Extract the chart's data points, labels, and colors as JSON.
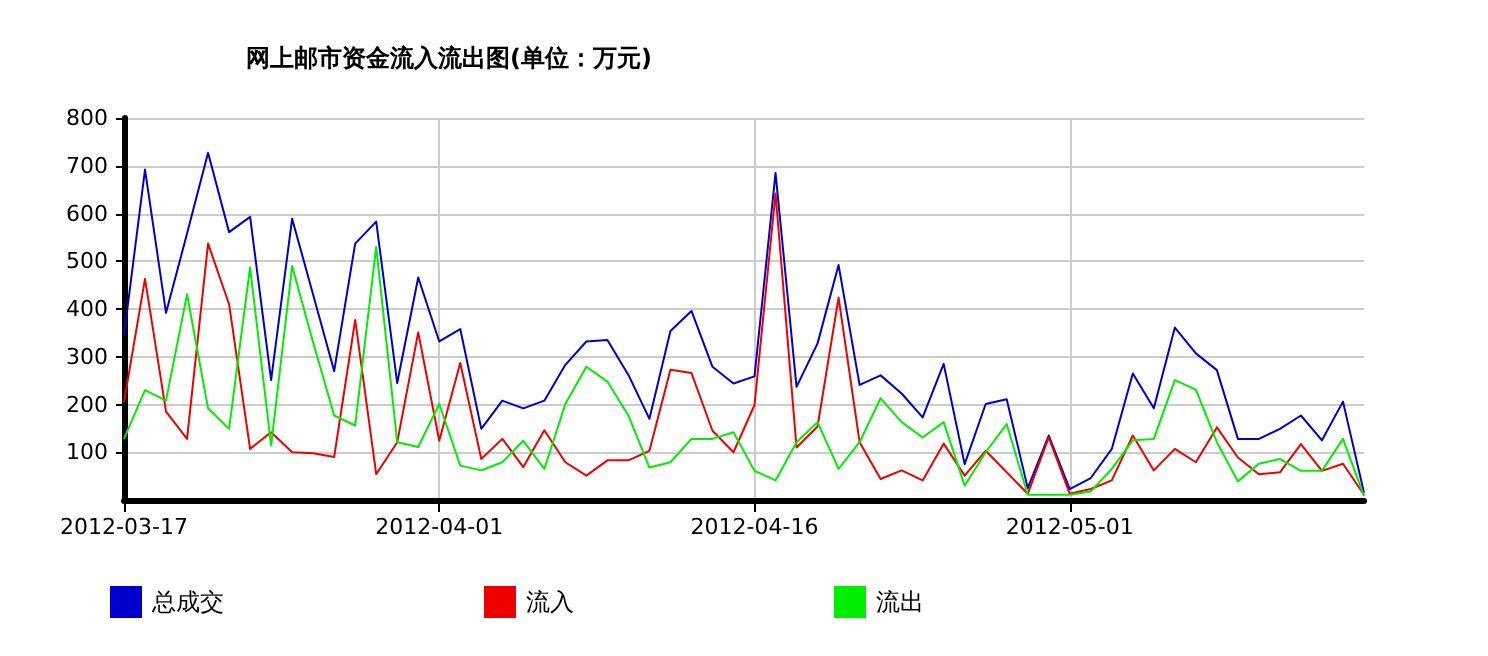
{
  "chart_data": {
    "type": "line",
    "title": "网上邮市资金流入流出图(单位：万元)",
    "x": [
      "2012-03-17",
      "2012-03-18",
      "2012-03-19",
      "2012-03-20",
      "2012-03-21",
      "2012-03-22",
      "2012-03-23",
      "2012-03-24",
      "2012-03-25",
      "2012-03-26",
      "2012-03-27",
      "2012-03-28",
      "2012-03-29",
      "2012-03-30",
      "2012-03-31",
      "2012-04-01",
      "2012-04-02",
      "2012-04-03",
      "2012-04-04",
      "2012-04-05",
      "2012-04-06",
      "2012-04-07",
      "2012-04-08",
      "2012-04-09",
      "2012-04-10",
      "2012-04-11",
      "2012-04-12",
      "2012-04-13",
      "2012-04-14",
      "2012-04-15",
      "2012-04-16",
      "2012-04-17",
      "2012-04-18",
      "2012-04-19",
      "2012-04-20",
      "2012-04-21",
      "2012-04-22",
      "2012-04-23",
      "2012-04-24",
      "2012-04-25",
      "2012-04-26",
      "2012-04-27",
      "2012-04-28",
      "2012-04-29",
      "2012-04-30",
      "2012-05-01",
      "2012-05-02",
      "2012-05-03",
      "2012-05-04",
      "2012-05-05",
      "2012-05-06",
      "2012-05-07",
      "2012-05-08",
      "2012-05-09",
      "2012-05-10",
      "2012-05-11",
      "2012-05-12",
      "2012-05-13",
      "2012-05-14",
      "2012-05-15"
    ],
    "series": [
      {
        "name": "总成交",
        "color": "#0000cc",
        "values": [
          345,
          692,
          392,
          558,
          727,
          561,
          593,
          251,
          589,
          430,
          270,
          537,
          583,
          245,
          466,
          332,
          358,
          149,
          208,
          192,
          208,
          283,
          332,
          335,
          262,
          170,
          354,
          396,
          279,
          244,
          259,
          685,
          237,
          328,
          492,
          241,
          261,
          223,
          173,
          285,
          75,
          201,
          211,
          25,
          135,
          23,
          46,
          107,
          265,
          192,
          361,
          307,
          272,
          128,
          128,
          149,
          177,
          125,
          206,
          15
        ]
      },
      {
        "name": "流入",
        "color": "#ee0000",
        "values": [
          205,
          463,
          185,
          128,
          537,
          410,
          107,
          142,
          100,
          98,
          90,
          377,
          54,
          121,
          351,
          124,
          287,
          86,
          128,
          69,
          146,
          79,
          51,
          83,
          83,
          103,
          273,
          266,
          145,
          100,
          199,
          642,
          110,
          154,
          424,
          121,
          44,
          62,
          41,
          118,
          51,
          103,
          58,
          13,
          131,
          13,
          23,
          41,
          135,
          62,
          107,
          79,
          152,
          89,
          54,
          58,
          117,
          61,
          76,
          11
        ]
      },
      {
        "name": "流出",
        "color": "#00ee00",
        "values": [
          128,
          230,
          208,
          431,
          192,
          149,
          487,
          114,
          490,
          330,
          177,
          156,
          530,
          121,
          111,
          201,
          72,
          62,
          79,
          124,
          65,
          201,
          279,
          248,
          177,
          68,
          79,
          128,
          128,
          142,
          61,
          41,
          121,
          163,
          65,
          121,
          213,
          163,
          131,
          163,
          30,
          100,
          159,
          11,
          11,
          11,
          18,
          65,
          125,
          128,
          251,
          231,
          121,
          39,
          76,
          86,
          61,
          61,
          128,
          8
        ]
      }
    ],
    "xlim": [
      "2012-03-17",
      "2012-05-15"
    ],
    "xticks": [
      "2012-03-17",
      "2012-04-01",
      "2012-04-16",
      "2012-05-01"
    ],
    "ylim": [
      0,
      800
    ],
    "yticks": [
      100,
      200,
      300,
      400,
      500,
      600,
      700,
      800
    ],
    "grid": true,
    "legend": "bottom left",
    "marker": "none",
    "line_style": "solid"
  }
}
